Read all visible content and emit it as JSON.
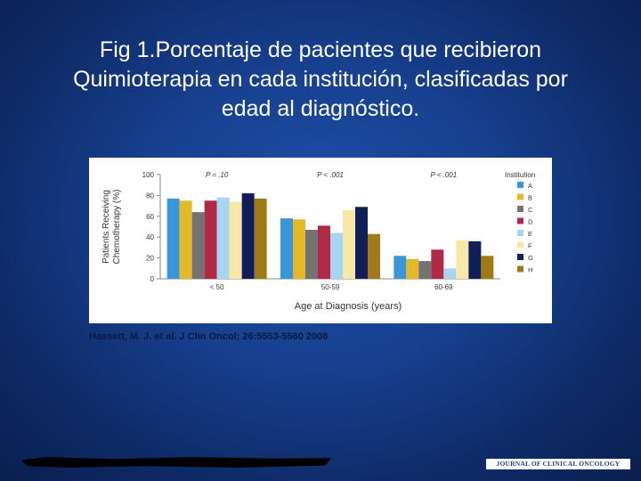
{
  "slide": {
    "title_lines": [
      "Fig 1.Porcentaje de pacientes que recibieron",
      "Quimioterapia en cada institución, clasificadas por",
      "edad al diagnóstico."
    ],
    "citation": "Hassett, M. J. et al. J Clin Oncol; 26:5553-5560 2008",
    "journal_logo": "JOURNAL OF CLINICAL ONCOLOGY"
  },
  "chart_data": {
    "type": "bar",
    "categories": [
      "< 50",
      "50-59",
      "60-69"
    ],
    "group_annotations": [
      "P = .10",
      "P < .001",
      "P < .001"
    ],
    "ylabel_lines": [
      "Patients Receiving",
      "Chemotherapy (%)"
    ],
    "xlabel": "Age at Diagnosis (years)",
    "ylim": [
      0,
      100
    ],
    "yticks": [
      0,
      20,
      40,
      60,
      80,
      100
    ],
    "legend_title": "Institution",
    "legend_position": "right",
    "grid": false,
    "series": [
      {
        "name": "A",
        "color": "#3a96d8",
        "values": [
          77,
          58,
          22
        ]
      },
      {
        "name": "B",
        "color": "#e3b92a",
        "values": [
          75,
          57,
          19
        ]
      },
      {
        "name": "C",
        "color": "#737373",
        "values": [
          64,
          47,
          17
        ]
      },
      {
        "name": "D",
        "color": "#b02a48",
        "values": [
          75,
          51,
          28
        ]
      },
      {
        "name": "E",
        "color": "#a7d4f0",
        "values": [
          78,
          44,
          10
        ]
      },
      {
        "name": "F",
        "color": "#f7e8a8",
        "values": [
          74,
          66,
          37
        ]
      },
      {
        "name": "G",
        "color": "#101e5a",
        "values": [
          82,
          69,
          36
        ]
      },
      {
        "name": "H",
        "color": "#a07a14",
        "values": [
          77,
          43,
          22
        ]
      }
    ]
  }
}
